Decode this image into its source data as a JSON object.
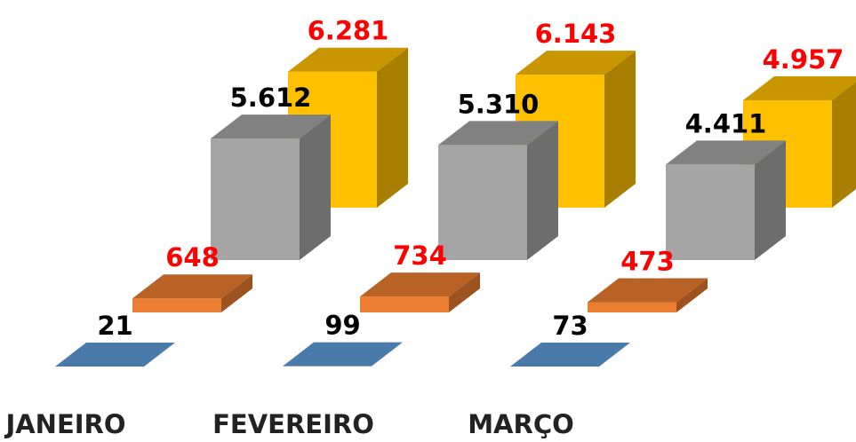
{
  "chart_data": {
    "type": "bar",
    "categories": [
      "JANEIRO",
      "FEVEREIRO",
      "MARÇO"
    ],
    "series": [
      {
        "values": [
          21,
          99,
          73
        ],
        "labels": [
          "21",
          "99",
          "73"
        ],
        "color": "#4a7aaa",
        "label_color": "#000000"
      },
      {
        "values": [
          648,
          734,
          473
        ],
        "labels": [
          "648",
          "734",
          "473"
        ],
        "color": "#ed7d31",
        "label_color": "#ff0000"
      },
      {
        "values": [
          5612,
          5310,
          4411
        ],
        "labels": [
          "5.612",
          "5.310",
          "4.411"
        ],
        "color": "#a5a5a5",
        "label_color": "#000000"
      },
      {
        "values": [
          6281,
          6143,
          4957
        ],
        "labels": [
          "6.281",
          "6.143",
          "4.957"
        ],
        "color": "#ffc000",
        "label_color": "#ff0000"
      }
    ],
    "title": "",
    "xlabel": "",
    "ylabel": "",
    "grid": false,
    "legend": "none"
  }
}
